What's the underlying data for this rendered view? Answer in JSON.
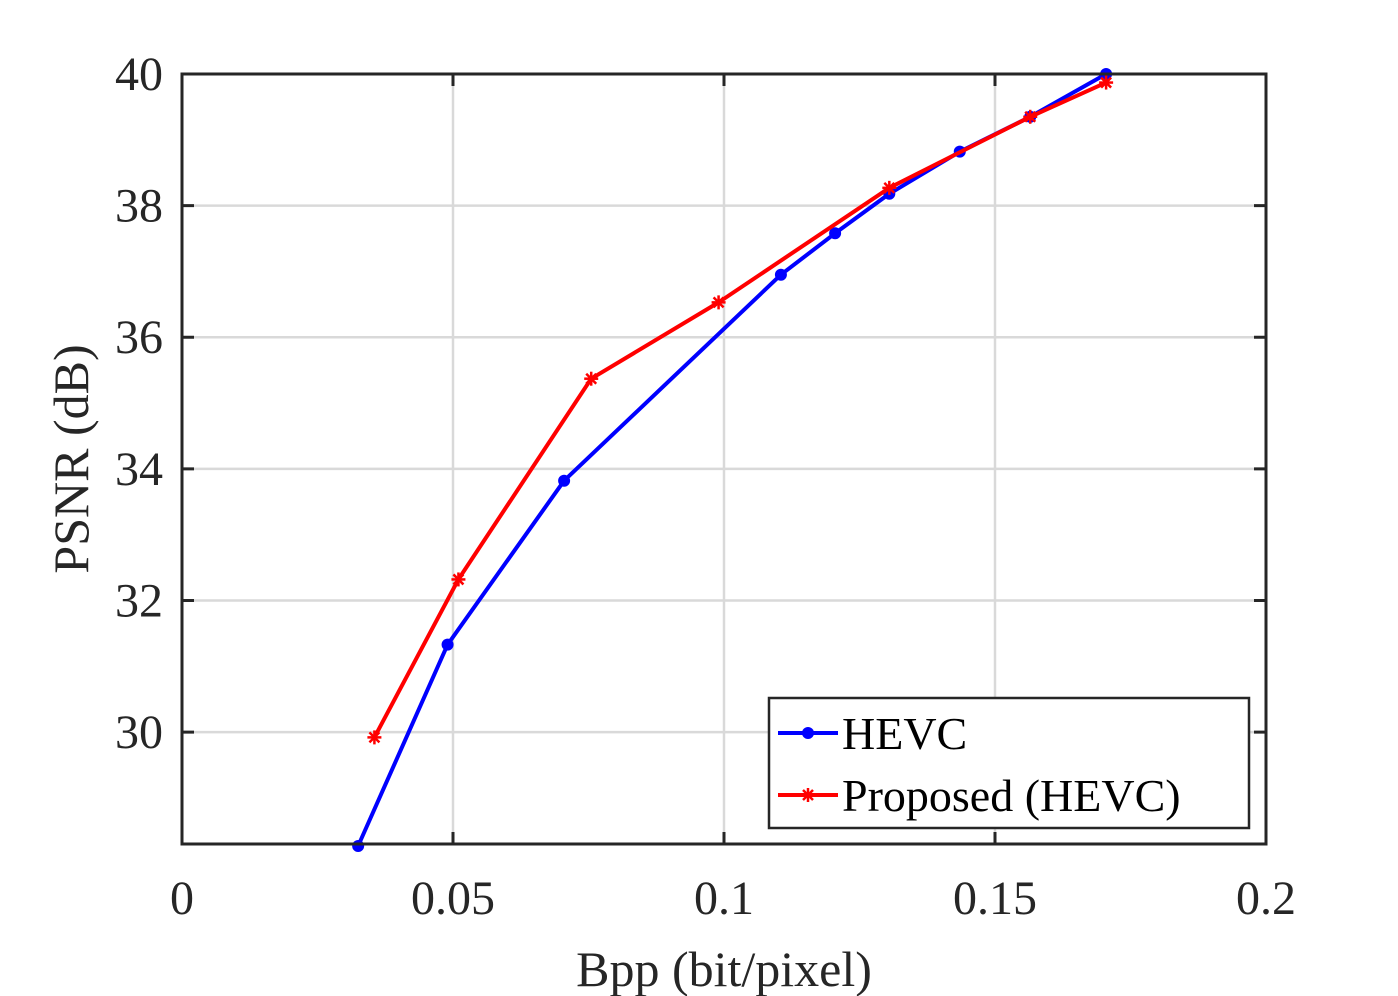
{
  "chart_data": {
    "type": "line",
    "title": "",
    "xlabel": "Bpp (bit/pixel)",
    "ylabel": "PSNR (dB)",
    "xlim": [
      0,
      0.2
    ],
    "ylim": [
      28.3,
      40
    ],
    "xticks": [
      0,
      0.05,
      0.1,
      0.15,
      0.2
    ],
    "xtick_labels": [
      "0",
      "0.05",
      "0.1",
      "0.15",
      "0.2"
    ],
    "yticks": [
      30,
      32,
      34,
      36,
      38,
      40
    ],
    "ytick_labels": [
      "30",
      "32",
      "34",
      "36",
      "38",
      "40"
    ],
    "grid": true,
    "legend_position": "bottom-right",
    "series": [
      {
        "name": "HEVC",
        "color": "#0000ff",
        "marker": "dot",
        "x": [
          0.0325,
          0.049,
          0.0705,
          0.1105,
          0.1205,
          0.1305,
          0.1435,
          0.1565,
          0.1705
        ],
        "y": [
          28.27,
          31.33,
          33.82,
          36.95,
          37.58,
          38.18,
          38.82,
          39.35,
          40.0
        ]
      },
      {
        "name": "Proposed (HEVC)",
        "color": "#ff0000",
        "marker": "star",
        "x": [
          0.0355,
          0.051,
          0.0755,
          0.099,
          0.1305,
          0.1565,
          0.1705
        ],
        "y": [
          29.92,
          32.32,
          35.37,
          36.53,
          38.27,
          39.35,
          39.87
        ]
      }
    ]
  }
}
